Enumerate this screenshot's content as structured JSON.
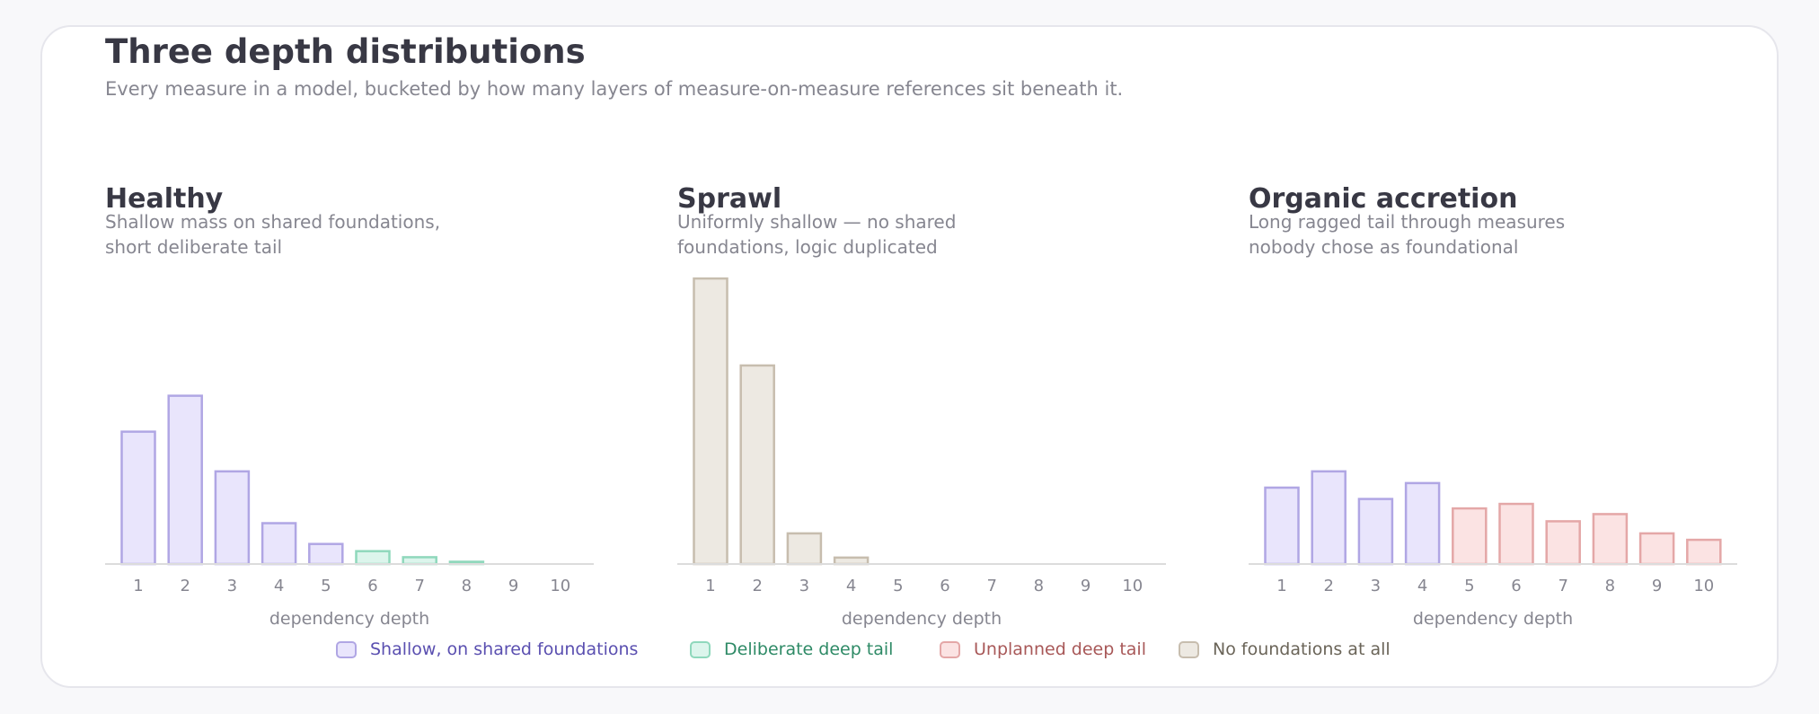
{
  "header": {
    "title": "Three depth distributions",
    "subtitle": "Every measure in a model, bucketed by how many layers of measure-on-measure references sit beneath it."
  },
  "colors": {
    "shallow": {
      "fill": "#e9e5fc",
      "stroke": "#b0a6e4",
      "text": "#5a4fb0"
    },
    "deliberate": {
      "fill": "#dcf5ec",
      "stroke": "#8fd8bc",
      "text": "#2e8a66"
    },
    "unplanned": {
      "fill": "#fbe3e3",
      "stroke": "#e4a7a7",
      "text": "#a85858"
    },
    "none": {
      "fill": "#ede9e2",
      "stroke": "#c7bdae",
      "text": "#6a6458"
    }
  },
  "legend": [
    {
      "key": "shallow",
      "label": "Shallow, on shared foundations"
    },
    {
      "key": "deliberate",
      "label": "Deliberate deep tail"
    },
    {
      "key": "unplanned",
      "label": "Unplanned deep tail"
    },
    {
      "key": "none",
      "label": "No foundations at all"
    }
  ],
  "chart_data": [
    {
      "type": "bar",
      "title": "Healthy",
      "subtitle": "Shallow mass on shared foundations, short deliberate tail",
      "xlabel": "dependency depth",
      "categories": [
        "1",
        "2",
        "3",
        "4",
        "5",
        "6",
        "7",
        "8",
        "9",
        "10"
      ],
      "values": [
        35,
        44.5,
        24.5,
        10.8,
        5.3,
        3.4,
        1.8,
        0.6,
        0,
        0
      ],
      "categories_kind": [
        "shallow",
        "shallow",
        "shallow",
        "shallow",
        "shallow",
        "deliberate",
        "deliberate",
        "deliberate",
        "deliberate",
        "deliberate"
      ],
      "ylim": [
        0,
        76
      ]
    },
    {
      "type": "bar",
      "title": "Sprawl",
      "subtitle": "Uniformly shallow — no shared foundations, logic duplicated",
      "xlabel": "dependency depth",
      "categories": [
        "1",
        "2",
        "3",
        "4",
        "5",
        "6",
        "7",
        "8",
        "9",
        "10"
      ],
      "values": [
        75.5,
        52.5,
        8.1,
        1.7,
        0,
        0,
        0,
        0,
        0,
        0
      ],
      "categories_kind": [
        "none",
        "none",
        "none",
        "none",
        "none",
        "none",
        "none",
        "none",
        "none",
        "none"
      ],
      "ylim": [
        0,
        76
      ]
    },
    {
      "type": "bar",
      "title": "Organic accretion",
      "subtitle": "Long ragged tail through measures nobody chose as foundational",
      "xlabel": "dependency depth",
      "categories": [
        "1",
        "2",
        "3",
        "4",
        "5",
        "6",
        "7",
        "8",
        "9",
        "10"
      ],
      "values": [
        20.2,
        24.5,
        17.2,
        21.4,
        14.7,
        15.9,
        11.3,
        13.2,
        8.1,
        6.4
      ],
      "categories_kind": [
        "shallow",
        "shallow",
        "shallow",
        "shallow",
        "unplanned",
        "unplanned",
        "unplanned",
        "unplanned",
        "unplanned",
        "unplanned"
      ],
      "ylim": [
        0,
        76
      ]
    }
  ]
}
